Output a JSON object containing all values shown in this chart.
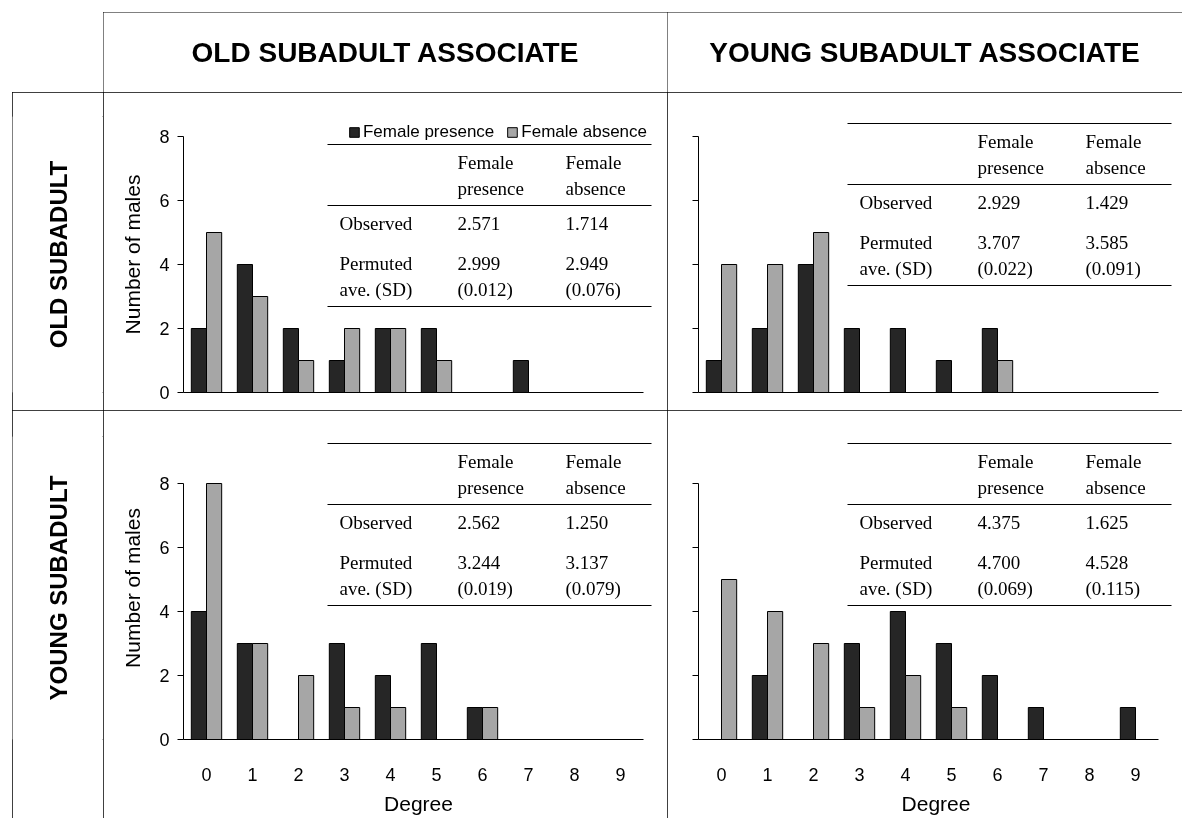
{
  "chart_data": [
    {
      "type": "other",
      "annotations": [
        "OLD SUBADULT ASSOCIATE",
        "YOUNG SUBADULT ASSOCIATE",
        "OLD SUBADULT",
        "YOUNG SUBADULT"
      ]
    },
    {
      "type": "bar",
      "categories": [
        "0",
        "1",
        "2",
        "3",
        "4",
        "5",
        "6",
        "7",
        "8",
        "9"
      ],
      "ylabel": "Number of males",
      "ylim": [
        0,
        8
      ],
      "yticks": [
        0,
        2,
        4,
        6,
        8
      ],
      "tick_labels": "y",
      "legend": "top right",
      "series": [
        {
          "name": "Female presence",
          "color": "#262626",
          "values": [
            2,
            4,
            2,
            1,
            2,
            2,
            0,
            1,
            0,
            0
          ]
        },
        {
          "name": "Female absence",
          "color": "#a6a6a6",
          "values": [
            5,
            3,
            1,
            2,
            2,
            1,
            0,
            0,
            0,
            0
          ]
        }
      ],
      "annotations": [
        "Female presence",
        "Female absence",
        "Observed",
        "2.571",
        "1.714",
        "Permuted ave. (SD)",
        "2.999 (0.012)",
        "2.949 (0.076)"
      ]
    },
    {
      "type": "bar",
      "categories": [
        "0",
        "1",
        "2",
        "3",
        "4",
        "5",
        "6",
        "7",
        "8",
        "9"
      ],
      "ylim": [
        0,
        8
      ],
      "yticks": [
        0,
        2,
        4,
        6,
        8
      ],
      "tick_labels": false,
      "series": [
        {
          "color": "#262626",
          "values": [
            1,
            2,
            4,
            2,
            2,
            1,
            2,
            0,
            0,
            0
          ]
        },
        {
          "color": "#a6a6a6",
          "values": [
            4,
            4,
            5,
            0,
            0,
            0,
            1,
            0,
            0,
            0
          ]
        }
      ],
      "annotations": [
        "Female presence",
        "Female absence",
        "Observed",
        "2.929",
        "1.429",
        "Permuted ave. (SD)",
        "3.707 (0.022)",
        "3.585 (0.091)"
      ]
    },
    {
      "type": "bar",
      "categories": [
        "0",
        "1",
        "2",
        "3",
        "4",
        "5",
        "6",
        "7",
        "8",
        "9"
      ],
      "xlabel": "Degree",
      "ylabel": "Number of males",
      "ylim": [
        0,
        8
      ],
      "yticks": [
        0,
        2,
        4,
        6,
        8
      ],
      "series": [
        {
          "color": "#262626",
          "values": [
            4,
            3,
            0,
            3,
            2,
            3,
            1,
            0,
            0,
            0
          ]
        },
        {
          "color": "#a6a6a6",
          "values": [
            8,
            3,
            2,
            1,
            1,
            0,
            1,
            0,
            0,
            0
          ]
        }
      ],
      "annotations": [
        "Female presence",
        "Female absence",
        "Observed",
        "2.562",
        "1.250",
        "Permuted ave. (SD)",
        "3.244 (0.019)",
        "3.137 (0.079)"
      ]
    },
    {
      "type": "bar",
      "categories": [
        "0",
        "1",
        "2",
        "3",
        "4",
        "5",
        "6",
        "7",
        "8",
        "9"
      ],
      "xlabel": "Degree",
      "ylim": [
        0,
        8
      ],
      "yticks": [
        0,
        2,
        4,
        6,
        8
      ],
      "tick_labels": "x",
      "series": [
        {
          "color": "#262626",
          "values": [
            0,
            2,
            0,
            3,
            4,
            3,
            2,
            1,
            0,
            1
          ]
        },
        {
          "color": "#a6a6a6",
          "values": [
            5,
            4,
            3,
            1,
            2,
            1,
            0,
            0,
            0,
            0
          ]
        }
      ],
      "annotations": [
        "Female presence",
        "Female absence",
        "Observed",
        "4.375",
        "1.625",
        "Permuted ave. (SD)",
        "4.700 (0.069)",
        "4.528 (0.115)"
      ]
    }
  ]
}
